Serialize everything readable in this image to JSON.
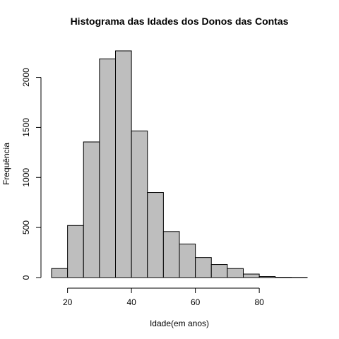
{
  "chart_data": {
    "type": "bar",
    "title": "Histograma das Idades dos Donos das Contas",
    "xlabel": "Idade(em anos)",
    "ylabel": "Frequência",
    "bins": [
      {
        "start": 15,
        "end": 20,
        "count": 90
      },
      {
        "start": 20,
        "end": 25,
        "count": 520
      },
      {
        "start": 25,
        "end": 30,
        "count": 1355
      },
      {
        "start": 30,
        "end": 35,
        "count": 2185
      },
      {
        "start": 35,
        "end": 40,
        "count": 2265
      },
      {
        "start": 40,
        "end": 45,
        "count": 1465
      },
      {
        "start": 45,
        "end": 50,
        "count": 850
      },
      {
        "start": 50,
        "end": 55,
        "count": 460
      },
      {
        "start": 55,
        "end": 60,
        "count": 335
      },
      {
        "start": 60,
        "end": 65,
        "count": 200
      },
      {
        "start": 65,
        "end": 70,
        "count": 130
      },
      {
        "start": 70,
        "end": 75,
        "count": 90
      },
      {
        "start": 75,
        "end": 80,
        "count": 35
      },
      {
        "start": 80,
        "end": 85,
        "count": 10
      },
      {
        "start": 85,
        "end": 90,
        "count": 3
      },
      {
        "start": 90,
        "end": 95,
        "count": 2
      }
    ],
    "xlim": [
      15,
      95
    ],
    "ylim": [
      0,
      2265
    ],
    "xticks": [
      20,
      40,
      60,
      80
    ],
    "yticks": [
      0,
      500,
      1000,
      1500,
      2000
    ],
    "grid": false,
    "bar_color": "#bebebe",
    "edge_color": "#000000"
  }
}
